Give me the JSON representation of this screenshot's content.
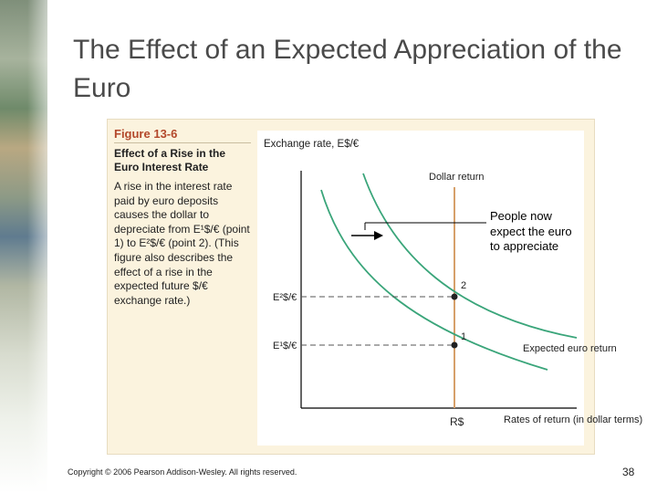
{
  "slide": {
    "title": "The Effect of an Expected Appreciation of the Euro",
    "footer": "Copyright © 2006 Pearson Addison-Wesley. All rights reserved.",
    "page_number": "38"
  },
  "figure": {
    "number": "Figure 13-6",
    "subtitle": "Effect of a Rise in the Euro Interest Rate",
    "caption": "A rise in the interest rate paid by euro deposits causes the dollar to depreciate from E¹$/€ (point 1) to E²$/€ (point 2). (This figure also describes the effect of a rise in the expected future $/€ exchange rate.)"
  },
  "callout": {
    "text": "People now expect the euro to appreciate"
  },
  "chart_data": {
    "type": "line",
    "title": "",
    "ylabel": "Exchange rate, E$/€",
    "xlabel": "Rates of return (in dollar terms)",
    "series": [
      {
        "name": "Expected euro return (new)",
        "shape": "downward-sloping",
        "label": ""
      },
      {
        "name": "Expected euro return (initial)",
        "shape": "downward-sloping",
        "label": "Expected euro return"
      },
      {
        "name": "Dollar return",
        "shape": "vertical at R$",
        "label": "Dollar return"
      }
    ],
    "points": [
      {
        "label": "1",
        "y_label": "E¹$/€"
      },
      {
        "label": "2",
        "y_label": "E²$/€"
      }
    ],
    "x_tick": "R$",
    "colors": {
      "curve": "#3aa57a",
      "dollar_return": "#d6a06a",
      "dashed": "#555555"
    }
  }
}
